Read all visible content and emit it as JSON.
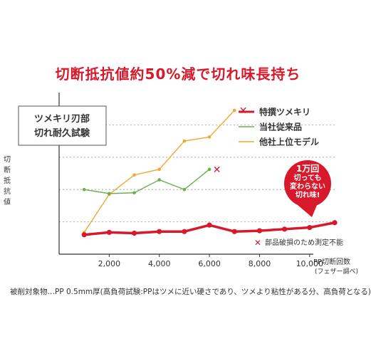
{
  "headline": "切断抵抗値約50%減で切れ味長持ち",
  "footnote": "被削対象物…PP 0.5mm厚(高負荷試験:PPはツメに近い硬さであり、ツメより粘性がある分、高負荷となる)",
  "colors": {
    "accent": "#d7192b",
    "series_red": "#d7192b",
    "series_green": "#6ab04c",
    "series_orange": "#f0a830",
    "axis": "#333333",
    "grid": "#9a9a9a"
  },
  "chart_data": {
    "type": "line",
    "title": "ツメキリ刃部\n切れ耐久試験",
    "ylabel": "切断抵抗値",
    "xlabel": "PP切断回数",
    "xlabel_note": "(フェザー調べ)",
    "xticks": [
      2000,
      4000,
      6000,
      8000,
      10000
    ],
    "xtick_labels": [
      "2,000",
      "4,000",
      "6,000",
      "8,000",
      "10,000"
    ],
    "xlim": [
      0,
      11000
    ],
    "ylim": [
      0,
      100
    ],
    "y_gridlines": [
      20,
      40,
      60,
      80
    ],
    "grid": "horizontal dashed",
    "legend_position": "top-right",
    "series": [
      {
        "name": "特撰ツメキリ",
        "color": "#d7192b",
        "x": [
          1000,
          2000,
          3000,
          4000,
          5000,
          6000,
          7000,
          8000,
          9000,
          10000,
          11000
        ],
        "y": [
          12,
          13.5,
          13,
          14,
          14,
          18,
          14,
          14.5,
          15.5,
          16.5,
          19.5
        ]
      },
      {
        "name": "当社従来品",
        "color": "#6ab04c",
        "x": [
          1000,
          2000,
          3000,
          4000,
          5000,
          6000
        ],
        "y": [
          40,
          37.5,
          38,
          46,
          40,
          52.5
        ]
      },
      {
        "name": "他社上位モデル",
        "color": "#f0a830",
        "x": [
          1000,
          2000,
          3000,
          4000,
          5000,
          6000,
          7000
        ],
        "y": [
          13.5,
          37,
          49,
          52.5,
          70,
          72.5,
          89
        ]
      }
    ],
    "break_markers": [
      {
        "series": "当社従来品",
        "x": 6300,
        "y": 52.5
      },
      {
        "series": "他社上位モデル",
        "x": 7350,
        "y": 89
      }
    ],
    "callout": {
      "lines": [
        "1万回",
        "切っても",
        "変わらない",
        "切れ味!"
      ],
      "series": "特撰ツメキリ",
      "x": 11000,
      "y": 19.5
    },
    "annotation": "部品破損のため測定不能"
  }
}
